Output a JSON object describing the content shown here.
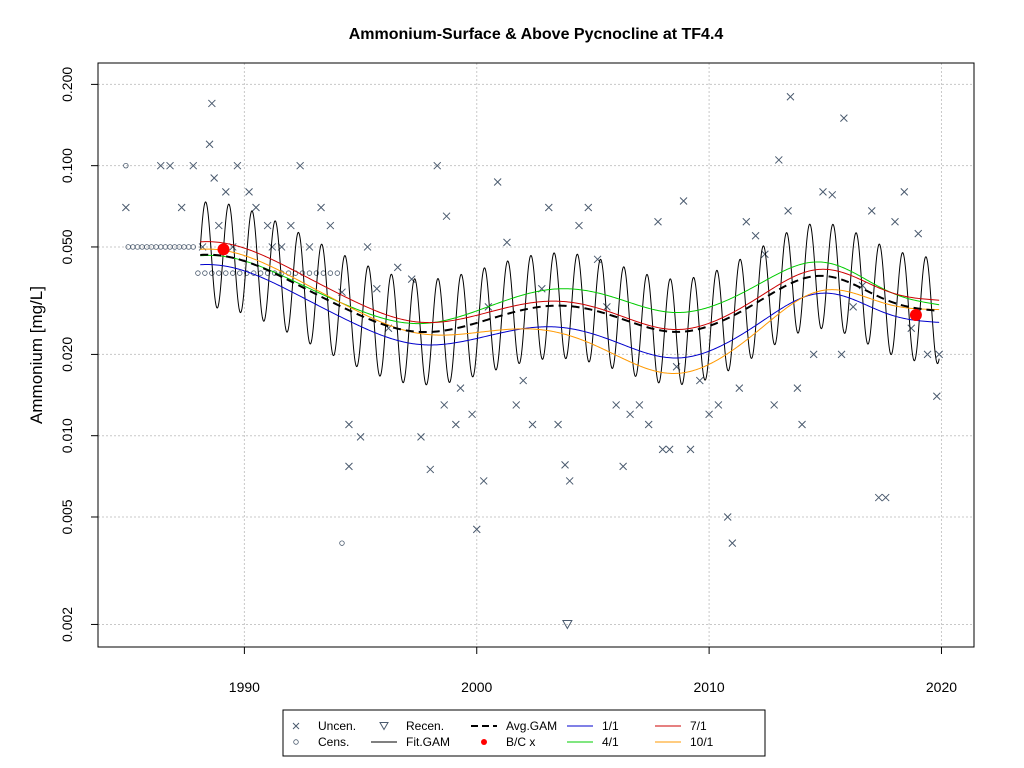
{
  "chart_data": {
    "type": "scatter",
    "title": "Ammonium-Surface & Above Pycnocline at TF4.4",
    "ylabel": "Ammonium [mg/L]",
    "xlabel": "",
    "y_scale": "log",
    "xlim": [
      1983.7,
      2021.4
    ],
    "ylim": [
      0.00165,
      0.24
    ],
    "grid": true,
    "x_ticks": [
      {
        "value": 1990,
        "label": "1990"
      },
      {
        "value": 2000,
        "label": "2000"
      },
      {
        "value": 2010,
        "label": "2010"
      },
      {
        "value": 2020,
        "label": "2020"
      }
    ],
    "y_ticks": [
      {
        "value": 0.002,
        "label": "0.002"
      },
      {
        "value": 0.005,
        "label": "0.005"
      },
      {
        "value": 0.01,
        "label": "0.010"
      },
      {
        "value": 0.02,
        "label": "0.020"
      },
      {
        "value": 0.05,
        "label": "0.050"
      },
      {
        "value": 0.1,
        "label": "0.100"
      },
      {
        "value": 0.2,
        "label": "0.200"
      }
    ],
    "colors": {
      "points": "#4a5a6e",
      "avg_gam": "#000000",
      "fit_gam": "#000000",
      "bc": "#ff0000",
      "s1_1": "#0000cc",
      "s4_1": "#00cc00",
      "s7_1": "#cc0000",
      "s10_1": "#ff9900"
    },
    "legend": {
      "placement": "bottom",
      "items": [
        {
          "label": "Uncen.",
          "symbol": "x",
          "color": "#4a5a6e"
        },
        {
          "label": "Cens.",
          "symbol": "circle",
          "color": "#4a5a6e"
        },
        {
          "label": "Recen.",
          "symbol": "triangle-down",
          "color": "#4a5a6e"
        },
        {
          "label": "Fit.GAM",
          "symbol": "line",
          "color": "#000000"
        },
        {
          "label": "Avg.GAM",
          "symbol": "dash",
          "color": "#000000"
        },
        {
          "label": "B/C x",
          "symbol": "dot",
          "color": "#ff0000"
        },
        {
          "label": "1/1",
          "symbol": "line",
          "color": "#0000cc"
        },
        {
          "label": "4/1",
          "symbol": "line",
          "color": "#00cc00"
        },
        {
          "label": "7/1",
          "symbol": "line",
          "color": "#cc0000"
        },
        {
          "label": "10/1",
          "symbol": "line",
          "color": "#ff9900"
        }
      ]
    },
    "uncensored": [
      [
        1984.9,
        0.07
      ],
      [
        1986.4,
        0.1
      ],
      [
        1986.8,
        0.1
      ],
      [
        1987.3,
        0.07
      ],
      [
        1987.8,
        0.1
      ],
      [
        1988.2,
        0.05
      ],
      [
        1988.5,
        0.12
      ],
      [
        1988.6,
        0.17
      ],
      [
        1988.7,
        0.09
      ],
      [
        1988.9,
        0.06
      ],
      [
        1989.2,
        0.08
      ],
      [
        1989.5,
        0.05
      ],
      [
        1989.7,
        0.1
      ],
      [
        1990.2,
        0.08
      ],
      [
        1990.5,
        0.07
      ],
      [
        1991.0,
        0.06
      ],
      [
        1991.2,
        0.05
      ],
      [
        1991.6,
        0.05
      ],
      [
        1992.0,
        0.06
      ],
      [
        1992.4,
        0.1
      ],
      [
        1992.8,
        0.05
      ],
      [
        1993.3,
        0.07
      ],
      [
        1993.7,
        0.06
      ],
      [
        1994.2,
        0.034
      ],
      [
        1994.5,
        0.011
      ],
      [
        1994.5,
        0.0077
      ],
      [
        1995.0,
        0.0099
      ],
      [
        1995.3,
        0.05
      ],
      [
        1995.7,
        0.035
      ],
      [
        1996.2,
        0.025
      ],
      [
        1996.6,
        0.042
      ],
      [
        1997.2,
        0.038
      ],
      [
        1997.6,
        0.0099
      ],
      [
        1998.0,
        0.0075
      ],
      [
        1998.3,
        0.1
      ],
      [
        1998.6,
        0.013
      ],
      [
        1998.7,
        0.065
      ],
      [
        1999.1,
        0.011
      ],
      [
        1999.3,
        0.015
      ],
      [
        1999.8,
        0.012
      ],
      [
        2000.0,
        0.0045
      ],
      [
        2000.3,
        0.0068
      ],
      [
        2000.5,
        0.03
      ],
      [
        2000.9,
        0.087
      ],
      [
        2001.3,
        0.052
      ],
      [
        2001.7,
        0.013
      ],
      [
        2002.0,
        0.016
      ],
      [
        2002.4,
        0.011
      ],
      [
        2002.8,
        0.035
      ],
      [
        2003.1,
        0.07
      ],
      [
        2003.5,
        0.011
      ],
      [
        2003.8,
        0.0078
      ],
      [
        2004.0,
        0.0068
      ],
      [
        2004.4,
        0.06
      ],
      [
        2004.8,
        0.07
      ],
      [
        2005.2,
        0.045
      ],
      [
        2005.6,
        0.03
      ],
      [
        2006.0,
        0.013
      ],
      [
        2006.3,
        0.0077
      ],
      [
        2006.6,
        0.012
      ],
      [
        2007.0,
        0.013
      ],
      [
        2007.4,
        0.011
      ],
      [
        2007.8,
        0.062
      ],
      [
        2008.0,
        0.0089
      ],
      [
        2008.3,
        0.0089
      ],
      [
        2008.6,
        0.018
      ],
      [
        2008.9,
        0.074
      ],
      [
        2009.2,
        0.0089
      ],
      [
        2009.6,
        0.016
      ],
      [
        2010.0,
        0.012
      ],
      [
        2010.4,
        0.013
      ],
      [
        2010.8,
        0.005
      ],
      [
        2011.0,
        0.004
      ],
      [
        2011.3,
        0.015
      ],
      [
        2011.6,
        0.062
      ],
      [
        2012.0,
        0.055
      ],
      [
        2012.4,
        0.047
      ],
      [
        2012.8,
        0.013
      ],
      [
        2013.0,
        0.105
      ],
      [
        2013.4,
        0.068
      ],
      [
        2013.5,
        0.18
      ],
      [
        2013.8,
        0.015
      ],
      [
        2014.0,
        0.011
      ],
      [
        2014.5,
        0.02
      ],
      [
        2014.9,
        0.08
      ],
      [
        2015.3,
        0.078
      ],
      [
        2015.7,
        0.02
      ],
      [
        2015.8,
        0.15
      ],
      [
        2016.2,
        0.03
      ],
      [
        2016.6,
        0.036
      ],
      [
        2017.0,
        0.068
      ],
      [
        2017.3,
        0.0059
      ],
      [
        2017.6,
        0.0059
      ],
      [
        2018.0,
        0.062
      ],
      [
        2018.4,
        0.08
      ],
      [
        2018.7,
        0.025
      ],
      [
        2019.0,
        0.056
      ],
      [
        2019.4,
        0.02
      ],
      [
        2019.8,
        0.014
      ],
      [
        2019.9,
        0.02
      ]
    ],
    "censored": [
      [
        1984.9,
        0.1
      ],
      [
        1985.0,
        0.05
      ],
      [
        1985.2,
        0.05
      ],
      [
        1985.4,
        0.05
      ],
      [
        1985.6,
        0.05
      ],
      [
        1985.8,
        0.05
      ],
      [
        1986.0,
        0.05
      ],
      [
        1986.2,
        0.05
      ],
      [
        1986.4,
        0.05
      ],
      [
        1986.6,
        0.05
      ],
      [
        1986.8,
        0.05
      ],
      [
        1987.0,
        0.05
      ],
      [
        1987.2,
        0.05
      ],
      [
        1987.4,
        0.05
      ],
      [
        1987.6,
        0.05
      ],
      [
        1987.8,
        0.05
      ],
      [
        1988.0,
        0.04
      ],
      [
        1988.3,
        0.04
      ],
      [
        1988.6,
        0.04
      ],
      [
        1988.9,
        0.04
      ],
      [
        1989.2,
        0.04
      ],
      [
        1989.5,
        0.04
      ],
      [
        1989.8,
        0.04
      ],
      [
        1990.1,
        0.04
      ],
      [
        1990.4,
        0.04
      ],
      [
        1990.7,
        0.04
      ],
      [
        1991.0,
        0.04
      ],
      [
        1991.3,
        0.04
      ],
      [
        1991.6,
        0.04
      ],
      [
        1991.9,
        0.04
      ],
      [
        1992.2,
        0.04
      ],
      [
        1992.5,
        0.04
      ],
      [
        1992.8,
        0.04
      ],
      [
        1993.1,
        0.04
      ],
      [
        1993.4,
        0.04
      ],
      [
        1993.7,
        0.04
      ],
      [
        1994.0,
        0.04
      ],
      [
        1994.2,
        0.004
      ]
    ],
    "recensored": [
      [
        2003.9,
        0.002
      ]
    ],
    "bc_points": [
      [
        1989.1,
        0.049
      ],
      [
        2018.9,
        0.028
      ]
    ]
  }
}
